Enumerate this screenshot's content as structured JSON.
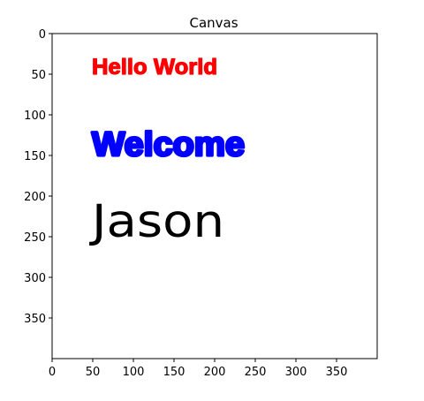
{
  "figure": {
    "title": "Canvas",
    "x_ticks": [
      0,
      50,
      100,
      150,
      200,
      250,
      300,
      350
    ],
    "y_ticks": [
      0,
      50,
      100,
      150,
      200,
      250,
      300,
      350
    ],
    "x_range": [
      0,
      400
    ],
    "y_range": [
      0,
      400
    ],
    "y_axis_inverted": true,
    "background_color": "#ffffff",
    "texts": [
      {
        "text": "Hello World",
        "color": "#ff0000",
        "style": "bold",
        "baseline_x": 50,
        "baseline_y": 50,
        "cap_height": 20
      },
      {
        "text": "Welcome",
        "color": "#0000ff",
        "style": "extra-bold",
        "baseline_x": 50,
        "baseline_y": 150,
        "cap_height": 30
      },
      {
        "text": "Jason",
        "color": "#000000",
        "style": "thin",
        "baseline_x": 50,
        "baseline_y": 250,
        "cap_height": 40
      }
    ]
  }
}
